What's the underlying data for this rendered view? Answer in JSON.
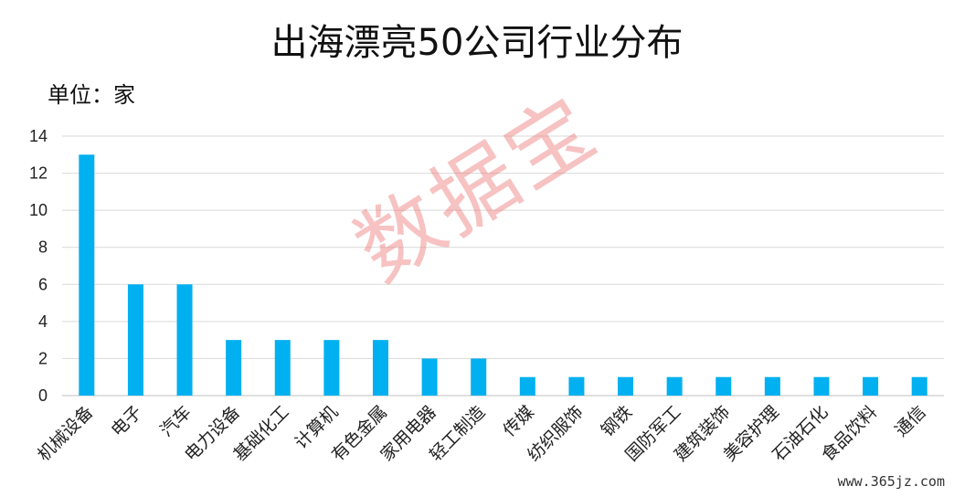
{
  "title": "出海漂亮50公司行业分布",
  "unit_label": "单位：家",
  "watermark": "数据宝",
  "source": "www.365jz.com",
  "colors": {
    "bar": "#00B0F0",
    "grid": "#D9D9D9",
    "axis": "#BFBFBF"
  },
  "chart_data": {
    "type": "bar",
    "title": "出海漂亮50公司行业分布",
    "ylabel": "单位：家",
    "xlabel": "",
    "ylim": [
      0,
      14
    ],
    "yticks": [
      "0",
      "2",
      "4",
      "6",
      "8",
      "10",
      "12",
      "14"
    ],
    "grid": true,
    "categories": [
      "机械设备",
      "电子",
      "汽车",
      "电力设备",
      "基础化工",
      "计算机",
      "有色金属",
      "家用电器",
      "轻工制造",
      "传媒",
      "纺织服饰",
      "钢铁",
      "国防军工",
      "建筑装饰",
      "美容护理",
      "石油石化",
      "食品饮料",
      "通信"
    ],
    "values": [
      13,
      6,
      6,
      3,
      3,
      3,
      3,
      2,
      2,
      1,
      1,
      1,
      1,
      1,
      1,
      1,
      1,
      1
    ]
  }
}
